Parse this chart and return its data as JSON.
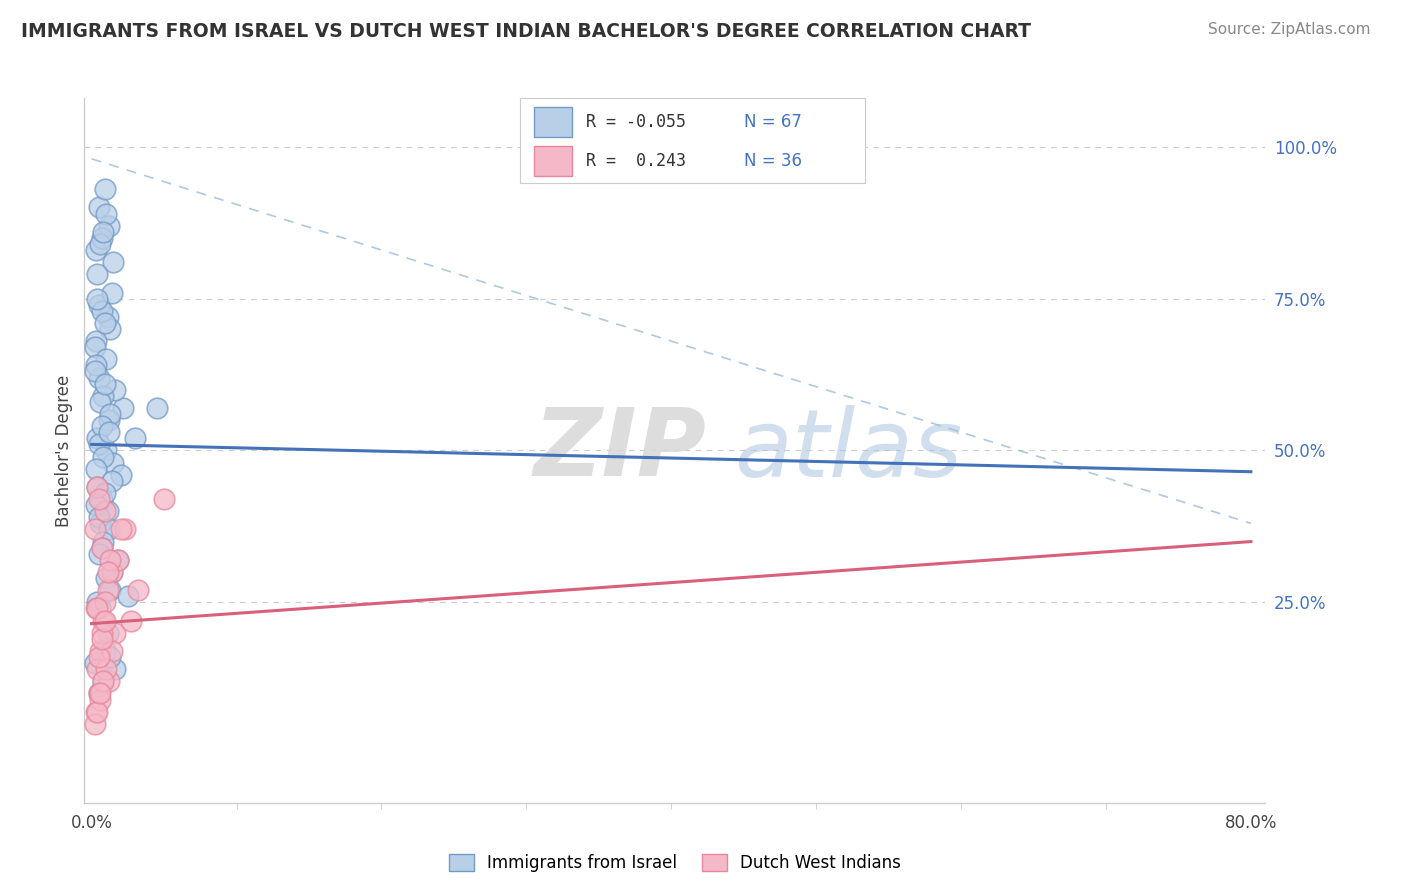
{
  "title": "IMMIGRANTS FROM ISRAEL VS DUTCH WEST INDIAN BACHELOR'S DEGREE CORRELATION CHART",
  "source": "Source: ZipAtlas.com",
  "ylabel": "Bachelor's Degree",
  "background_color": "#ffffff",
  "grid_color": "#cccccc",
  "blue_color": "#7399c6",
  "pink_color": "#e8879c",
  "blue_fill": "#b8cfe8",
  "pink_fill": "#f5b8c8",
  "trend_blue": "#4472b8",
  "trend_pink": "#d9607a",
  "watermark_zip": "ZIP",
  "watermark_atlas": "atlas",
  "blue_scatter_x": [
    0.5,
    0.9,
    1.2,
    0.3,
    0.7,
    1.0,
    1.5,
    0.4,
    0.6,
    0.8,
    1.1,
    0.5,
    1.3,
    0.3,
    1.4,
    0.2,
    0.7,
    0.9,
    0.4,
    1.0,
    2.2,
    1.6,
    0.5,
    0.8,
    1.2,
    0.3,
    0.6,
    1.3,
    0.2,
    0.9,
    0.4,
    1.0,
    0.7,
    1.5,
    0.5,
    2.0,
    1.2,
    0.8,
    0.3,
    1.4,
    4.5,
    0.4,
    3.0,
    0.7,
    1.1,
    0.6,
    0.9,
    0.3,
    0.5,
    1.2,
    0.8,
    1.8,
    1.4,
    0.7,
    1.0,
    0.5,
    1.3,
    2.5,
    0.4,
    0.6,
    0.9,
    0.2,
    1.6,
    1.1,
    0.8,
    0.5,
    1.3
  ],
  "blue_scatter_y": [
    90,
    93,
    87,
    83,
    85,
    89,
    81,
    79,
    84,
    86,
    72,
    74,
    70,
    68,
    76,
    67,
    73,
    71,
    75,
    65,
    57,
    60,
    62,
    59,
    55,
    64,
    58,
    56,
    63,
    61,
    52,
    50,
    54,
    48,
    51,
    46,
    53,
    49,
    47,
    45,
    57,
    44,
    52,
    42,
    40,
    38,
    43,
    41,
    39,
    37,
    35,
    32,
    30,
    34,
    29,
    33,
    27,
    26,
    25,
    24,
    17,
    15,
    14,
    20,
    12,
    10,
    16
  ],
  "pink_scatter_x": [
    0.4,
    0.9,
    0.2,
    0.7,
    1.4,
    0.5,
    1.1,
    0.3,
    0.8,
    1.8,
    1.6,
    0.6,
    2.7,
    0.4,
    1.2,
    2.3,
    0.5,
    0.9,
    0.3,
    0.7,
    1.4,
    0.2,
    1.0,
    0.6,
    0.4,
    0.8,
    5.0,
    1.3,
    0.5,
    2.0,
    0.7,
    0.9,
    0.4,
    3.2,
    0.6,
    1.1
  ],
  "pink_scatter_y": [
    44,
    40,
    37,
    34,
    30,
    42,
    27,
    24,
    22,
    32,
    20,
    17,
    22,
    14,
    12,
    37,
    10,
    25,
    7,
    20,
    17,
    5,
    14,
    9,
    24,
    12,
    42,
    32,
    16,
    37,
    19,
    22,
    7,
    27,
    10,
    30
  ],
  "blue_trend_x": [
    0.0,
    80.0
  ],
  "blue_trend_y": [
    51.0,
    46.5
  ],
  "pink_trend_x": [
    0.0,
    80.0
  ],
  "pink_trend_y": [
    21.5,
    35.0
  ],
  "dashed_line_x": [
    0.0,
    80.0
  ],
  "dashed_line_y": [
    98.0,
    38.0
  ],
  "xlim": [
    -0.5,
    81
  ],
  "ylim": [
    -8,
    108
  ],
  "x_tick_vals": [
    0,
    80
  ],
  "x_tick_labels": [
    "0.0%",
    "80.0%"
  ],
  "y_ticks_right": [
    25,
    50,
    75,
    100
  ],
  "y_tick_labels_right": [
    "25.0%",
    "50.0%",
    "75.0%",
    "100.0%"
  ]
}
